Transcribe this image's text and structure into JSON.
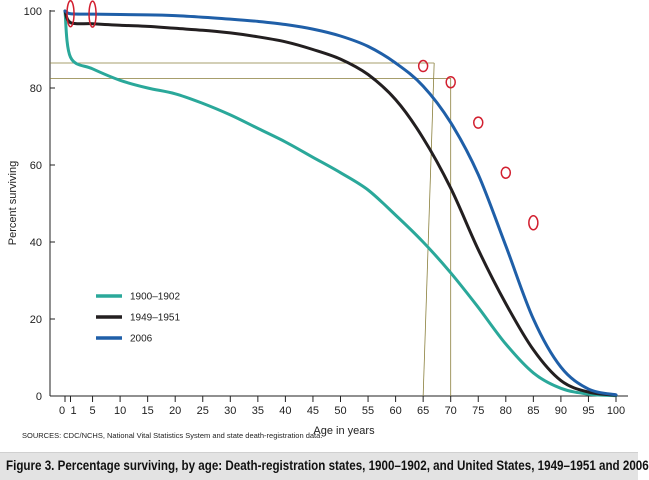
{
  "chart_data": {
    "type": "line",
    "title": "",
    "xlabel": "Age in years",
    "ylabel": "Percent surviving",
    "xlim": [
      -2,
      101
    ],
    "ylim": [
      0,
      100
    ],
    "x_ticks": [
      0,
      1,
      5,
      10,
      15,
      20,
      25,
      30,
      35,
      40,
      45,
      50,
      55,
      60,
      65,
      70,
      75,
      80,
      85,
      90,
      95,
      100
    ],
    "x_tick_labels": [
      "0",
      "1",
      "5",
      "10",
      "15",
      "20",
      "25",
      "30",
      "35",
      "40",
      "45",
      "50",
      "55",
      "60",
      "65",
      "70",
      "75",
      "80",
      "85",
      "90",
      "95",
      "100"
    ],
    "y_ticks": [
      0,
      20,
      40,
      60,
      80,
      100
    ],
    "y_tick_labels": [
      "0",
      "20",
      "40",
      "60",
      "80",
      "100"
    ],
    "grid": false,
    "legend_position": "lower-left",
    "series": [
      {
        "name": "1900–1902",
        "color": "#2aa89a",
        "x": [
          0,
          1,
          5,
          10,
          15,
          20,
          25,
          30,
          35,
          40,
          45,
          50,
          55,
          60,
          65,
          70,
          75,
          80,
          85,
          90,
          95,
          100
        ],
        "y": [
          100,
          88,
          85,
          82,
          80,
          78.5,
          76,
          73,
          69.5,
          66,
          62,
          58,
          53.5,
          47,
          40,
          32,
          23,
          13.5,
          6,
          2,
          0.5,
          0.1
        ]
      },
      {
        "name": "1949–1951",
        "color": "#231f20",
        "x": [
          0,
          1,
          5,
          10,
          15,
          20,
          25,
          30,
          35,
          40,
          45,
          50,
          55,
          60,
          65,
          70,
          75,
          80,
          85,
          90,
          95,
          100
        ],
        "y": [
          100,
          97,
          96.7,
          96.3,
          96,
          95.5,
          95,
          94.3,
          93.3,
          92,
          90,
          87.5,
          83.5,
          77,
          67,
          54,
          38,
          24,
          12,
          4,
          1,
          0.2
        ]
      },
      {
        "name": "2006",
        "color": "#1f5fa8",
        "x": [
          0,
          1,
          5,
          10,
          15,
          20,
          25,
          30,
          35,
          40,
          45,
          50,
          55,
          60,
          65,
          70,
          75,
          80,
          85,
          90,
          95,
          100
        ],
        "y": [
          100,
          99.3,
          99.2,
          99.1,
          99,
          98.8,
          98.4,
          97.9,
          97.3,
          96.5,
          95.3,
          93.5,
          90.8,
          86.5,
          80.5,
          71,
          57.5,
          39,
          20,
          7.5,
          1.8,
          0.3
        ]
      }
    ],
    "annotations": {
      "markers_2006": [
        {
          "x": 1,
          "y": 99.3
        },
        {
          "x": 5,
          "y": 99.2
        },
        {
          "x": 65,
          "y": 85.7
        },
        {
          "x": 70,
          "y": 81.5
        },
        {
          "x": 75,
          "y": 71
        },
        {
          "x": 80,
          "y": 58
        },
        {
          "x": 85,
          "y": 45
        }
      ],
      "reference_lines": [
        {
          "from_x": 0,
          "y": 86.5,
          "to_x": 67,
          "down_to_x": 65
        },
        {
          "from_x": 0,
          "y": 82.5,
          "to_x": 70,
          "down_to_x": 70
        }
      ],
      "source_note": "SOURCES: CDC/NCHS, National Vital Statistics System and state death-registration data."
    }
  },
  "caption": "Figure 3. Percentage surviving, by age: Death-registration states, 1900–1902, and United States, 1949–1951 and 2006",
  "colors": {
    "reference_line": "#8a7f3c",
    "marker": "#d21f2f",
    "caption_bar": "#e3e3e3"
  }
}
